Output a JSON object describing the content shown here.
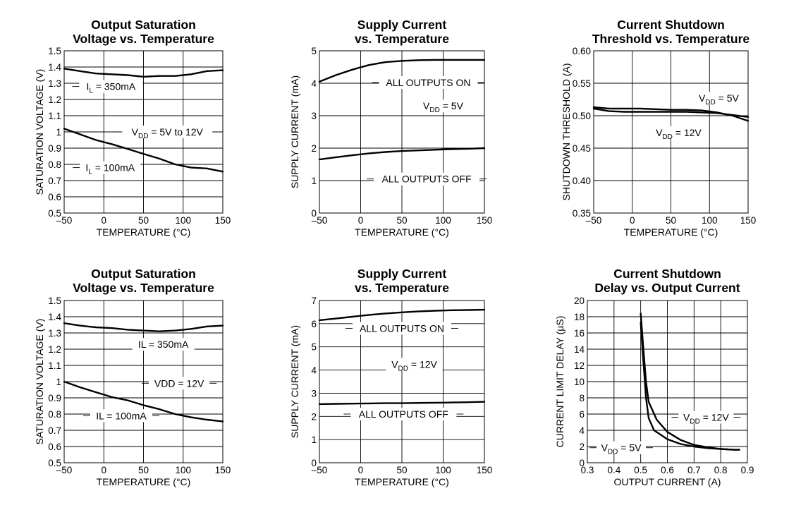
{
  "chart_data": [
    {
      "type": "line",
      "title": [
        "Output Saturation",
        "Voltage vs. Temperature"
      ],
      "xlabel": "TEMPERATURE (°C)",
      "ylabel": "SATURATION VOLTAGE (V)",
      "xlim": [
        -50,
        150
      ],
      "ylim": [
        0.5,
        1.5
      ],
      "xticks": [
        -50,
        0,
        50,
        100,
        150
      ],
      "yticks": [
        0.5,
        0.6,
        0.7,
        0.8,
        0.9,
        1,
        1.1,
        1.2,
        1.3,
        1.4,
        1.5
      ],
      "xtick_labels": [
        "–50",
        "0",
        "50",
        "100",
        "150"
      ],
      "ytick_labels": [
        "0.5",
        "0.6",
        "0.7",
        "0.8",
        "0.9",
        "1",
        "1.1",
        "1.2",
        "1.3",
        "1.4",
        "1.5"
      ],
      "series": [
        {
          "x": [
            -50,
            -30,
            -10,
            10,
            30,
            50,
            70,
            90,
            110,
            130,
            150
          ],
          "y": [
            1.39,
            1.375,
            1.36,
            1.355,
            1.35,
            1.34,
            1.345,
            1.345,
            1.355,
            1.375,
            1.38
          ]
        },
        {
          "x": [
            -50,
            -30,
            -10,
            10,
            30,
            50,
            70,
            90,
            110,
            130,
            150
          ],
          "y": [
            1.02,
            0.985,
            0.95,
            0.925,
            0.895,
            0.865,
            0.835,
            0.8,
            0.78,
            0.775,
            0.755
          ]
        }
      ],
      "annotations": [
        {
          "text": "I",
          "sub": "L",
          "text2": " = 350mA",
          "x": 9,
          "y": 1.28
        },
        {
          "text": "V",
          "sub": "DD",
          "text2": " = 5V to 12V",
          "x": 80,
          "y": 1.0
        },
        {
          "text": "I",
          "sub": "L",
          "text2": " = 100mA",
          "x": 8,
          "y": 0.78
        }
      ]
    },
    {
      "type": "line",
      "title": [
        "Supply Current",
        "vs. Temperature"
      ],
      "xlabel": "TEMPERATURE (°C)",
      "ylabel": "SUPPLY CURRENT (mA)",
      "xlim": [
        -50,
        150
      ],
      "ylim": [
        0,
        5
      ],
      "xticks": [
        -50,
        0,
        50,
        100,
        150
      ],
      "yticks": [
        0,
        1,
        2,
        3,
        4,
        5
      ],
      "xtick_labels": [
        "–50",
        "0",
        "50",
        "100",
        "150"
      ],
      "ytick_labels": [
        "0",
        "1",
        "2",
        "3",
        "4",
        "5"
      ],
      "series": [
        {
          "x": [
            -50,
            -30,
            -10,
            10,
            30,
            50,
            70,
            90,
            110,
            130,
            150
          ],
          "y": [
            4.05,
            4.25,
            4.42,
            4.56,
            4.65,
            4.69,
            4.71,
            4.72,
            4.72,
            4.72,
            4.72
          ]
        },
        {
          "x": [
            -50,
            -30,
            -10,
            10,
            30,
            50,
            70,
            90,
            110,
            130,
            150
          ],
          "y": [
            1.65,
            1.72,
            1.78,
            1.84,
            1.88,
            1.91,
            1.93,
            1.95,
            1.97,
            1.98,
            2.0
          ]
        }
      ],
      "annotations": [
        {
          "text": "ALL OUTPUTS ON",
          "x": 82,
          "y": 4.02
        },
        {
          "text": "V",
          "sub": "DD",
          "text2": " = 5V",
          "x": 100,
          "y": 3.3
        },
        {
          "text": "ALL OUTPUTS OFF",
          "x": 80,
          "y": 1.05
        }
      ]
    },
    {
      "type": "line",
      "title": [
        "Current Shutdown",
        "Threshold vs. Temperature"
      ],
      "xlabel": "TEMPERATURE (°C)",
      "ylabel": "SHUTDOWN THRESHOLD (A)",
      "xlim": [
        -50,
        150
      ],
      "ylim": [
        0.35,
        0.6
      ],
      "xticks": [
        -50,
        0,
        50,
        100,
        150
      ],
      "yticks": [
        0.35,
        0.4,
        0.45,
        0.5,
        0.55,
        0.6
      ],
      "xtick_labels": [
        "–50",
        "0",
        "50",
        "100",
        "150"
      ],
      "ytick_labels": [
        "0.35",
        "0.40",
        "0.45",
        "0.50",
        "0.55",
        "0.60"
      ],
      "series": [
        {
          "x": [
            -50,
            -30,
            -10,
            10,
            30,
            50,
            70,
            90,
            110,
            130,
            150
          ],
          "y": [
            0.513,
            0.511,
            0.511,
            0.511,
            0.51,
            0.509,
            0.509,
            0.508,
            0.505,
            0.5,
            0.492
          ]
        },
        {
          "x": [
            -50,
            -30,
            -10,
            10,
            30,
            50,
            70,
            90,
            110,
            130,
            150
          ],
          "y": [
            0.511,
            0.507,
            0.506,
            0.506,
            0.506,
            0.506,
            0.506,
            0.505,
            0.504,
            0.501,
            0.498
          ]
        }
      ],
      "annotations": [
        {
          "text": "V",
          "sub": "DD",
          "text2": " = 5V",
          "x": 112,
          "y": 0.527
        },
        {
          "text": "V",
          "sub": "DD",
          "text2": " = 12V",
          "x": 60,
          "y": 0.474
        }
      ]
    },
    {
      "type": "line",
      "title": [
        "Output Saturation",
        "Voltage vs. Temperature"
      ],
      "xlabel": "TEMPERATURE (°C)",
      "ylabel": "SATURATION VOLTAGE (V)",
      "xlim": [
        -50,
        150
      ],
      "ylim": [
        0.5,
        1.5
      ],
      "xticks": [
        -50,
        0,
        50,
        100,
        150
      ],
      "yticks": [
        0.5,
        0.6,
        0.7,
        0.8,
        0.9,
        1,
        1.1,
        1.2,
        1.3,
        1.4,
        1.5
      ],
      "xtick_labels": [
        "–50",
        "0",
        "50",
        "100",
        "150"
      ],
      "ytick_labels": [
        "0.5",
        "0.6",
        "0.7",
        "0.8",
        "0.9",
        "1",
        "1.1",
        "1.2",
        "1.3",
        "1.4",
        "1.5"
      ],
      "series": [
        {
          "x": [
            -50,
            -30,
            -10,
            10,
            30,
            50,
            70,
            90,
            110,
            130,
            150
          ],
          "y": [
            1.36,
            1.345,
            1.335,
            1.33,
            1.32,
            1.315,
            1.31,
            1.315,
            1.325,
            1.34,
            1.345
          ]
        },
        {
          "x": [
            -50,
            -30,
            -10,
            10,
            30,
            50,
            70,
            90,
            110,
            130,
            150
          ],
          "y": [
            1.0,
            0.965,
            0.935,
            0.905,
            0.885,
            0.855,
            0.83,
            0.8,
            0.78,
            0.765,
            0.755
          ]
        }
      ],
      "annotations": [
        {
          "text": "IL = 350mA",
          "x": 75,
          "y": 1.23
        },
        {
          "text": "VDD = 12V",
          "x": 95,
          "y": 0.99
        },
        {
          "text": "IL = 100mA",
          "x": 22,
          "y": 0.79
        }
      ]
    },
    {
      "type": "line",
      "title": [
        "Supply Current",
        "vs. Temperature"
      ],
      "xlabel": "TEMPERATURE (°C)",
      "ylabel": "SUPPLY CURRENT (mA)",
      "xlim": [
        -50,
        150
      ],
      "ylim": [
        0,
        7
      ],
      "xticks": [
        -50,
        0,
        50,
        100,
        150
      ],
      "yticks": [
        0,
        1,
        2,
        3,
        4,
        5,
        6,
        7
      ],
      "xtick_labels": [
        "–50",
        "0",
        "50",
        "100",
        "150"
      ],
      "ytick_labels": [
        "0",
        "1",
        "2",
        "3",
        "4",
        "5",
        "6",
        "7"
      ],
      "series": [
        {
          "x": [
            -50,
            -30,
            -10,
            10,
            30,
            50,
            70,
            90,
            110,
            130,
            150
          ],
          "y": [
            6.15,
            6.22,
            6.3,
            6.38,
            6.44,
            6.49,
            6.53,
            6.56,
            6.58,
            6.59,
            6.6
          ]
        },
        {
          "x": [
            -50,
            -30,
            -10,
            10,
            30,
            50,
            70,
            90,
            110,
            130,
            150
          ],
          "y": [
            2.53,
            2.54,
            2.55,
            2.56,
            2.57,
            2.57,
            2.58,
            2.59,
            2.6,
            2.61,
            2.63
          ]
        }
      ],
      "annotations": [
        {
          "text": "ALL OUTPUTS ON",
          "x": 50,
          "y": 5.8
        },
        {
          "text": "V",
          "sub": "DD",
          "text2": " = 12V",
          "x": 65,
          "y": 4.25
        },
        {
          "text": "ALL OUTPUTS OFF",
          "x": 52,
          "y": 2.1
        }
      ]
    },
    {
      "type": "line",
      "title": [
        "Current Shutdown",
        "Delay vs. Output Current"
      ],
      "xlabel": "OUTPUT CURRENT (A)",
      "ylabel": "CURRENT LIMIT DELAY (µS)",
      "xlim": [
        0.3,
        0.9
      ],
      "ylim": [
        0,
        20
      ],
      "xticks": [
        0.3,
        0.4,
        0.5,
        0.6,
        0.7,
        0.8,
        0.9
      ],
      "yticks": [
        0,
        2,
        4,
        6,
        8,
        10,
        12,
        14,
        16,
        18,
        20
      ],
      "xtick_labels": [
        "0.3",
        "0.4",
        "0.5",
        "0.6",
        "0.7",
        "0.8",
        "0.9"
      ],
      "ytick_labels": [
        "0",
        "2",
        "4",
        "6",
        "8",
        "10",
        "12",
        "14",
        "16",
        "18",
        "20"
      ],
      "series": [
        {
          "x": [
            0.5,
            0.51,
            0.52,
            0.53,
            0.56,
            0.6,
            0.65,
            0.7,
            0.75,
            0.8,
            0.85,
            0.87
          ],
          "y": [
            18.4,
            14.0,
            10.0,
            7.5,
            5.3,
            3.8,
            2.8,
            2.2,
            1.9,
            1.7,
            1.6,
            1.6
          ]
        },
        {
          "x": [
            0.5,
            0.51,
            0.52,
            0.53,
            0.55,
            0.6,
            0.65,
            0.7,
            0.75,
            0.8,
            0.85,
            0.87
          ],
          "y": [
            17.3,
            12.5,
            8.0,
            5.5,
            4.0,
            2.9,
            2.3,
            2.0,
            1.8,
            1.7,
            1.6,
            1.6
          ]
        }
      ],
      "annotations": [
        {
          "text": "V",
          "sub": "DD",
          "text2": " = 12V",
          "x": 0.745,
          "y": 5.6
        },
        {
          "text": "V",
          "sub": "DD",
          "text2": " = 5V",
          "x": 0.427,
          "y": 1.85
        }
      ]
    }
  ]
}
